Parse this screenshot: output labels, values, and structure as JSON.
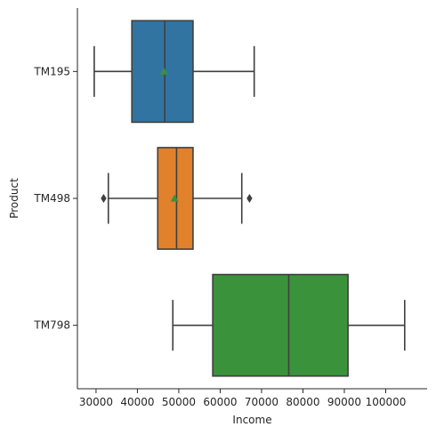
{
  "chart_data": {
    "type": "box",
    "orientation": "horizontal",
    "xlabel": "Income",
    "ylabel": "Product",
    "xlim": [
      25500,
      110000
    ],
    "xticks": [
      30000,
      40000,
      50000,
      60000,
      70000,
      80000,
      90000,
      100000
    ],
    "xtick_labels": [
      "30000",
      "40000",
      "50000",
      "60000",
      "70000",
      "80000",
      "90000",
      "100000"
    ],
    "categories": [
      "TM195",
      "TM498",
      "TM798"
    ],
    "series": [
      {
        "category": "TM195",
        "color": "#3274a1",
        "whisker_low": 29562,
        "q1": 38658,
        "median": 46617,
        "q3": 53439,
        "whisker_high": 68220,
        "mean": 46418,
        "outliers": []
      },
      {
        "category": "TM498",
        "color": "#e1812c",
        "whisker_low": 32973,
        "q1": 44911,
        "median": 49459,
        "q3": 53439,
        "whisker_high": 65220,
        "mean": 48973,
        "outliers": [
          31836,
          67083
        ]
      },
      {
        "category": "TM798",
        "color": "#3a923a",
        "whisker_low": 48556,
        "q1": 58204,
        "median": 76568,
        "q3": 90886,
        "whisker_high": 104581,
        "mean": 75441,
        "outliers": []
      }
    ],
    "mean_marker_color": "#3a923a",
    "grid": false,
    "legend": "none"
  }
}
